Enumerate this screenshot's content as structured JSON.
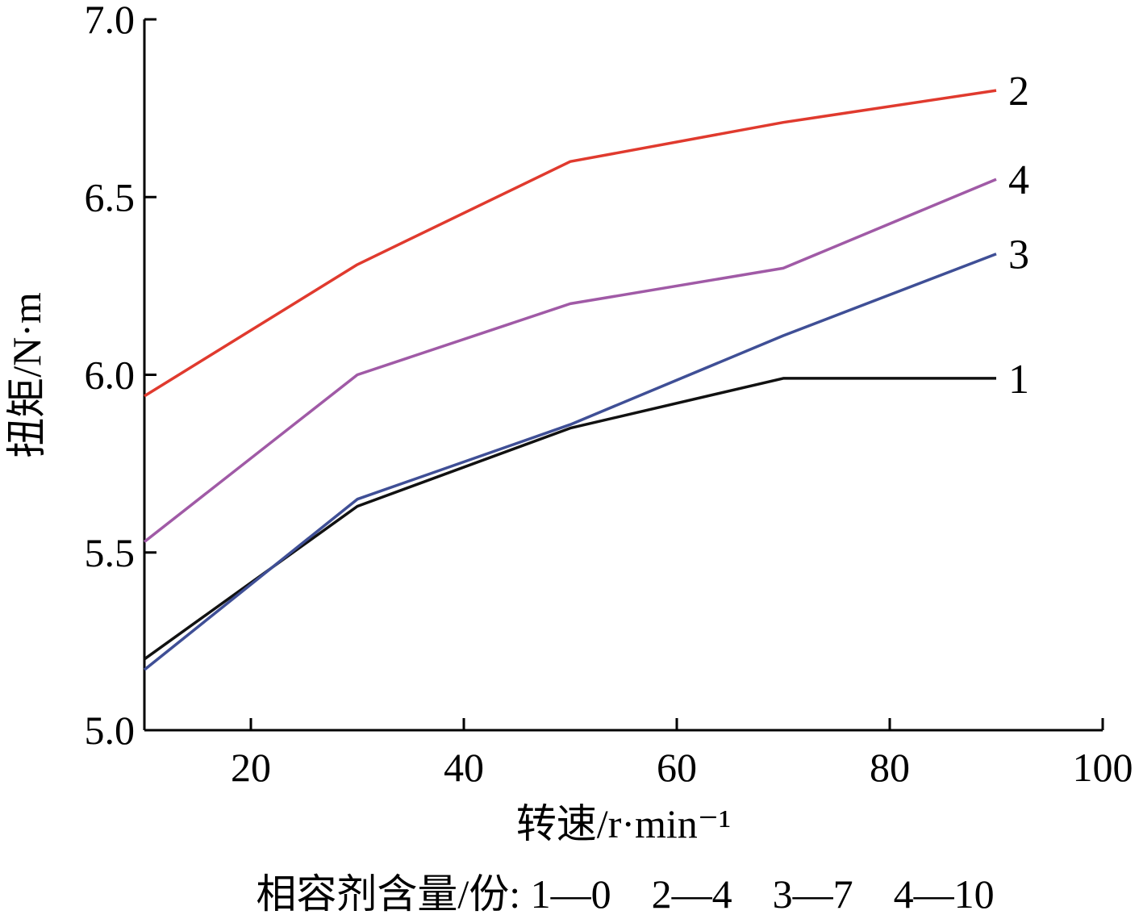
{
  "chart_data": {
    "type": "line",
    "title": "",
    "xlabel": "转速/r·min⁻¹",
    "ylabel": "扭矩/N·m",
    "xlim": [
      10,
      100
    ],
    "ylim": [
      5.0,
      7.0
    ],
    "x_ticks": [
      20,
      40,
      60,
      80,
      100
    ],
    "x_tick_labels": [
      "20",
      "40",
      "60",
      "80",
      "100"
    ],
    "y_ticks": [
      5.0,
      5.5,
      6.0,
      6.5,
      7.0
    ],
    "y_tick_labels": [
      "5.0",
      "5.5",
      "6.0",
      "6.5",
      "7.0"
    ],
    "grid": false,
    "legend": "series labelled at line ends; key printed below x-axis",
    "x": [
      10,
      30,
      50,
      70,
      90
    ],
    "series": [
      {
        "name": "1",
        "color": "#111111",
        "values": [
          5.2,
          5.63,
          5.85,
          5.99,
          5.99
        ]
      },
      {
        "name": "2",
        "color": "#e03a2e",
        "values": [
          5.94,
          6.31,
          6.6,
          6.71,
          6.8
        ]
      },
      {
        "name": "3",
        "color": "#3f4f96",
        "values": [
          5.17,
          5.65,
          5.86,
          6.11,
          6.34
        ]
      },
      {
        "name": "4",
        "color": "#a05aa6",
        "values": [
          5.53,
          6.0,
          6.2,
          6.3,
          6.55
        ]
      }
    ],
    "caption": "相容剂含量/份: 1—0　2—4　3—7　4—10"
  }
}
